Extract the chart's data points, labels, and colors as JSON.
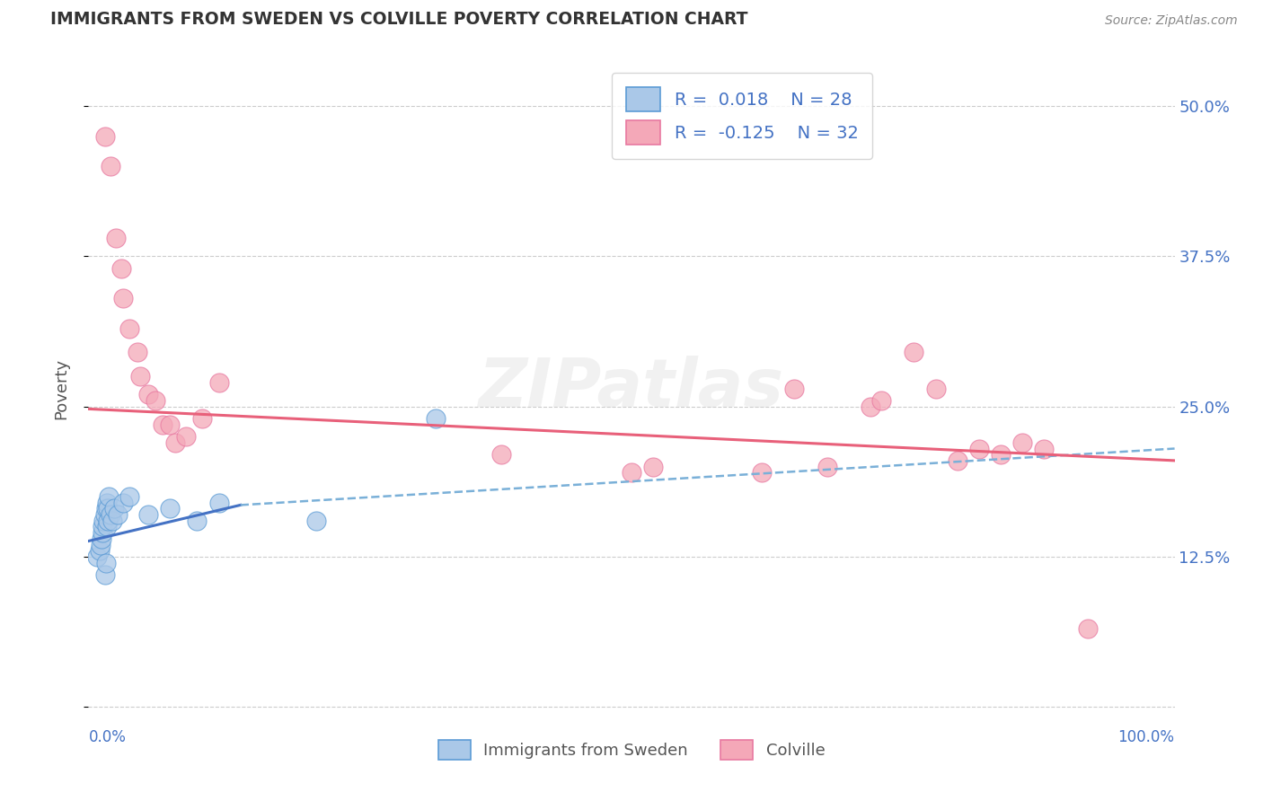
{
  "title": "IMMIGRANTS FROM SWEDEN VS COLVILLE POVERTY CORRELATION CHART",
  "source": "Source: ZipAtlas.com",
  "ylabel": "Poverty",
  "yticks": [
    0.0,
    0.125,
    0.25,
    0.375,
    0.5
  ],
  "ytick_labels": [
    "",
    "12.5%",
    "25.0%",
    "37.5%",
    "50.0%"
  ],
  "xlim": [
    0.0,
    1.0
  ],
  "ylim": [
    -0.005,
    0.535
  ],
  "legend_series": [
    {
      "label": "Immigrants from Sweden",
      "R": "0.018",
      "N": 28
    },
    {
      "label": "Colville",
      "R": "-0.125",
      "N": 32
    }
  ],
  "blue_scatter_x": [
    0.008,
    0.01,
    0.011,
    0.012,
    0.013,
    0.013,
    0.014,
    0.015,
    0.015,
    0.016,
    0.016,
    0.017,
    0.017,
    0.018,
    0.018,
    0.019,
    0.02,
    0.022,
    0.024,
    0.027,
    0.032,
    0.038,
    0.055,
    0.075,
    0.1,
    0.12,
    0.21,
    0.32
  ],
  "blue_scatter_y": [
    0.125,
    0.13,
    0.135,
    0.14,
    0.145,
    0.15,
    0.155,
    0.11,
    0.16,
    0.12,
    0.165,
    0.17,
    0.15,
    0.155,
    0.165,
    0.175,
    0.16,
    0.155,
    0.165,
    0.16,
    0.17,
    0.175,
    0.16,
    0.165,
    0.155,
    0.17,
    0.155,
    0.24
  ],
  "pink_scatter_x": [
    0.015,
    0.02,
    0.025,
    0.03,
    0.032,
    0.038,
    0.045,
    0.048,
    0.055,
    0.062,
    0.068,
    0.075,
    0.08,
    0.09,
    0.105,
    0.12,
    0.38,
    0.5,
    0.52,
    0.62,
    0.65,
    0.68,
    0.72,
    0.73,
    0.76,
    0.78,
    0.8,
    0.82,
    0.84,
    0.86,
    0.88,
    0.92
  ],
  "pink_scatter_y": [
    0.475,
    0.45,
    0.39,
    0.365,
    0.34,
    0.315,
    0.295,
    0.275,
    0.26,
    0.255,
    0.235,
    0.235,
    0.22,
    0.225,
    0.24,
    0.27,
    0.21,
    0.195,
    0.2,
    0.195,
    0.265,
    0.2,
    0.25,
    0.255,
    0.295,
    0.265,
    0.205,
    0.215,
    0.21,
    0.22,
    0.215,
    0.065
  ],
  "blue_line": {
    "x0": 0.0,
    "x1": 0.14,
    "y0": 0.138,
    "y1": 0.168
  },
  "blue_dash_line": {
    "x0": 0.14,
    "x1": 1.0,
    "y0": 0.168,
    "y1": 0.215
  },
  "pink_line": {
    "x0": 0.0,
    "x1": 1.0,
    "y0": 0.248,
    "y1": 0.205
  },
  "blue_scatter_color": "#aac8e8",
  "blue_edge_color": "#5b9bd5",
  "pink_scatter_color": "#f4a8b8",
  "pink_edge_color": "#e878a0",
  "blue_line_color": "#4472c4",
  "pink_line_color": "#e8607a",
  "blue_dash_color": "#7ab0d8",
  "watermark": "ZIPatlas",
  "background_color": "#ffffff",
  "grid_color": "#cccccc",
  "title_color": "#333333",
  "source_color": "#888888",
  "axis_label_color": "#4472c4",
  "ylabel_color": "#555555"
}
